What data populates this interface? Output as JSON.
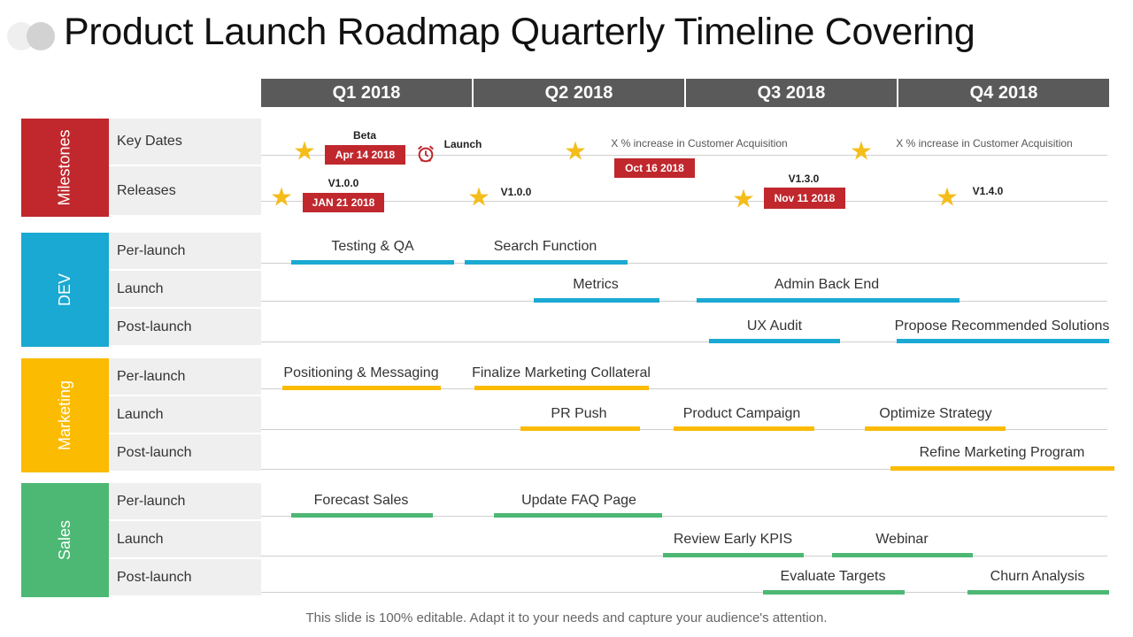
{
  "title": "Product Launch Roadmap Quarterly Timeline Covering",
  "quarters": [
    "Q1 2018",
    "Q2 2018",
    "Q3 2018",
    "Q4 2018"
  ],
  "categories": [
    {
      "label": "Milestones",
      "color": "#c0282d"
    },
    {
      "label": "DEV",
      "color": "#1aa9d2"
    },
    {
      "label": "Marketing",
      "color": "#fbbb00"
    },
    {
      "label": "Sales",
      "color": "#4cb874"
    }
  ],
  "row_labels": {
    "milestones": [
      "Key Dates",
      "Releases"
    ],
    "dev": [
      "Per-launch",
      "Launch",
      "Post-launch"
    ],
    "marketing": [
      "Per-launch",
      "Launch",
      "Post-launch"
    ],
    "sales": [
      "Per-launch",
      "Launch",
      "Post-launch"
    ]
  },
  "milestones": {
    "key_dates": {
      "beta_label": "Beta",
      "beta_date": "Apr 14 2018",
      "launch_label": "Launch",
      "q2_note": "X % increase in Customer Acquisition",
      "q2_date": "Oct  16  2018",
      "q4_note": "X % increase in Customer Acquisition"
    },
    "releases": {
      "r1_label": "V1.0.0",
      "r1_date": "JAN 21 2018",
      "r2_label": "V1.0.0",
      "r3_label": "V1.3.0",
      "r3_date": "Nov 11 2018",
      "r4_label": "V1.4.0"
    }
  },
  "dev": {
    "per_launch": [
      "Testing & QA",
      "Search Function"
    ],
    "launch": [
      "Metrics",
      "Admin Back End"
    ],
    "post_launch": [
      "UX Audit",
      "Propose Recommended Solutions"
    ]
  },
  "marketing": {
    "per_launch": [
      "Positioning & Messaging",
      "Finalize Marketing Collateral"
    ],
    "launch": [
      "PR Push",
      "Product Campaign",
      "Optimize Strategy"
    ],
    "post_launch": [
      "Refine Marketing Program"
    ]
  },
  "sales": {
    "per_launch": [
      "Forecast Sales",
      "Update FAQ Page"
    ],
    "launch": [
      "Review Early KPIS",
      "Webinar"
    ],
    "post_launch": [
      "Evaluate Targets",
      "Churn Analysis"
    ]
  },
  "footer": "This slide is 100% editable. Adapt it to your needs and capture your audience's attention.",
  "icons": {
    "star": "star-icon",
    "clock": "alarm-clock-icon"
  }
}
